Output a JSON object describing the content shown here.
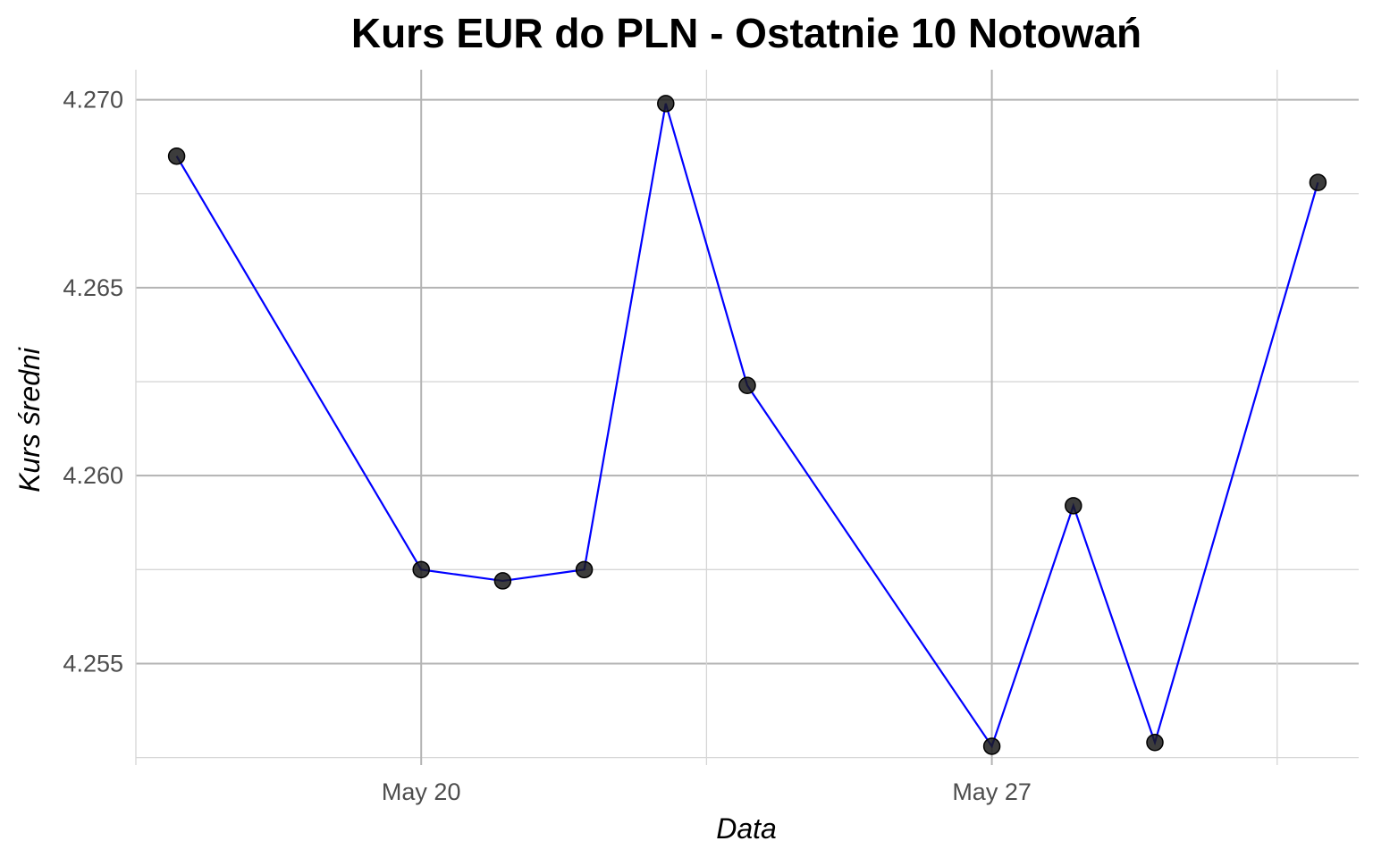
{
  "chart_data": {
    "type": "line",
    "title": "Kurs EUR do PLN - Ostatnie 10 Notowań",
    "xlabel": "Data",
    "ylabel": "Kurs średni",
    "x_tick_labels": [
      {
        "date": "2024-05-20",
        "label": "May 20"
      },
      {
        "date": "2024-05-27",
        "label": "May 27"
      }
    ],
    "y_ticks": [
      4.255,
      4.26,
      4.265,
      4.27
    ],
    "y_tick_labels": [
      "4.255",
      "4.260",
      "4.265",
      "4.270"
    ],
    "xlim": [
      "2024-05-16T12:00",
      "2024-05-31T12:00"
    ],
    "ylim": [
      4.2523,
      4.2708
    ],
    "grid": true,
    "series": [
      {
        "color": "#0000ff",
        "marker_color": "#1a1a1a",
        "points": [
          {
            "x": "2024-05-17",
            "y": 4.2685
          },
          {
            "x": "2024-05-20",
            "y": 4.2575
          },
          {
            "x": "2024-05-21",
            "y": 4.2572
          },
          {
            "x": "2024-05-22",
            "y": 4.2575
          },
          {
            "x": "2024-05-23",
            "y": 4.2699
          },
          {
            "x": "2024-05-24",
            "y": 4.2624
          },
          {
            "x": "2024-05-27",
            "y": 4.2528
          },
          {
            "x": "2024-05-28",
            "y": 4.2592
          },
          {
            "x": "2024-05-29",
            "y": 4.2529
          },
          {
            "x": "2024-05-31",
            "y": 4.2678
          }
        ]
      }
    ]
  }
}
